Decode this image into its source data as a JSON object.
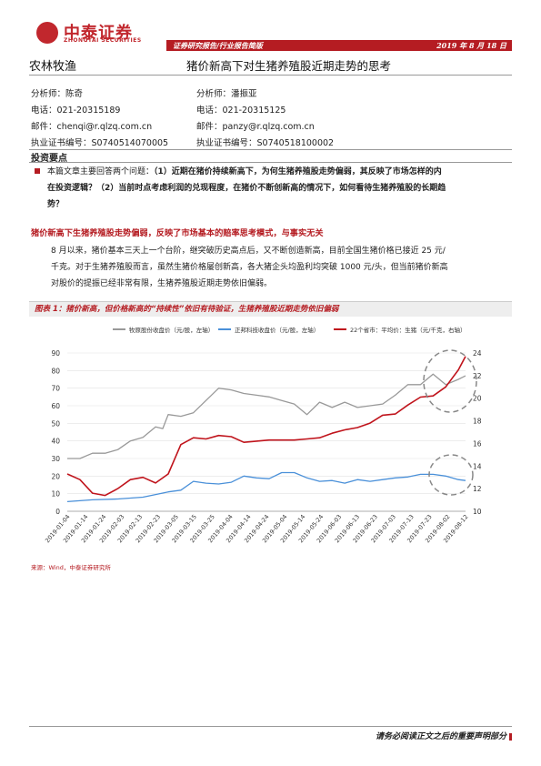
{
  "header": {
    "logo_cn": "中泰证券",
    "logo_en": "ZHONGTAI SECURITIES",
    "report_type": "证券研究报告/行业报告简版",
    "date": "2019 年 8 月 18 日",
    "brand_color": "#c1272d"
  },
  "section": "农林牧渔",
  "title": "猪价新高下对生猪养殖股近期走势的思考",
  "analysts": [
    {
      "name_line": "分析师：陈奇",
      "phone_line": "电话：021-20315189",
      "email_line": "邮件：chenqi@r.qlzq.com.cn",
      "cert_line": "执业证书编号：S0740514070005"
    },
    {
      "name_line": "分析师：潘振亚",
      "phone_line": "电话：021-20315125",
      "email_line": "邮件：panzy@r.qlzq.com.cn",
      "cert_line": "执业证书编号：S0740518100002"
    }
  ],
  "invest_label": "投资要点",
  "summary": {
    "p1": "本篇文章主要回答两个问题：",
    "p2": "（1）近期在猪价持续新高下，为何生猪养殖股走势偏弱，其反映了市场怎样的内",
    "p3": "在投资逻辑？（2）当前时点考虑利润的兑现程度，在猪价不断创新高的情况下，如何看待生猪养殖股的长期趋",
    "p4": "势？"
  },
  "red_heading": "猪价新高下生猪养殖股走势偏弱，反映了市场基本的赔率思考模式，与事实无关",
  "body_para": {
    "l1": "8 月以来，猪价基本三天上一个台阶，继突破历史高点后，又不断创造新高，目前全国生猪价格已接近 25 元/",
    "l2": "千克。对于生猪养殖股而言，虽然生猪价格屡创新高，各大猪企头均盈利均突破 1000 元/头，但当前猪价新高",
    "l3": "对股价的提振已经非常有限，生猪养殖股近期走势依旧偏弱。"
  },
  "figure_caption": "图表 1：猪价新高，但价格新高的“持续性”依旧有待验证，生猪养殖股近期走势依旧偏弱",
  "source": "来源：Wind，中泰证券研究所",
  "footer": "请务必阅读正文之后的重要声明部分",
  "chart_data": {
    "type": "line",
    "legend": [
      "牧原股份收盘价（元/股，左轴）",
      "正邦科技收盘价（元/股，左轴）",
      "22个省市：平均价：生猪（元/千克，右轴）"
    ],
    "colors": [
      "#999999",
      "#4a90d9",
      "#c0141c"
    ],
    "y_left": {
      "min": 0,
      "max": 90,
      "ticks": [
        0,
        10,
        20,
        30,
        40,
        50,
        60,
        70,
        80,
        90
      ]
    },
    "y_right": {
      "min": 10,
      "max": 24,
      "ticks": [
        10,
        12,
        14,
        16,
        18,
        20,
        22,
        24
      ]
    },
    "x_tick_labels": [
      "2019-01-04",
      "2019-01-14",
      "2019-01-24",
      "2019-02-03",
      "2019-02-13",
      "2019-02-23",
      "2019-03-05",
      "2019-03-15",
      "2019-03-25",
      "2019-04-04",
      "2019-04-14",
      "2019-04-24",
      "2019-05-04",
      "2019-05-14",
      "2019-05-24",
      "2019-06-03",
      "2019-06-13",
      "2019-06-23",
      "2019-07-03",
      "2019-07-13",
      "2019-07-23",
      "2019-08-02",
      "2019-08-12"
    ],
    "x_range_days": [
      0,
      221
    ],
    "series": [
      {
        "name": "牧原股份收盘价（元/股，左轴）",
        "axis": "left",
        "x": [
          0,
          7,
          14,
          21,
          28,
          35,
          42,
          49,
          53,
          56,
          63,
          70,
          77,
          84,
          91,
          98,
          105,
          112,
          119,
          126,
          133,
          140,
          147,
          154,
          161,
          168,
          175,
          182,
          189,
          196,
          203,
          210,
          217,
          221
        ],
        "y": [
          30,
          30,
          33,
          33,
          35,
          40,
          42,
          48,
          47,
          55,
          54,
          56,
          63,
          70,
          69,
          67,
          66,
          65,
          63,
          61,
          55,
          62,
          59,
          62,
          59,
          60,
          61,
          66,
          72,
          72,
          78,
          72,
          75,
          77
        ]
      },
      {
        "name": "正邦科技收盘价（元/股，左轴）",
        "axis": "left",
        "x": [
          0,
          14,
          28,
          42,
          56,
          63,
          70,
          77,
          84,
          91,
          98,
          105,
          112,
          119,
          126,
          133,
          140,
          147,
          154,
          161,
          168,
          175,
          182,
          189,
          196,
          203,
          210,
          217,
          221
        ],
        "y": [
          5.5,
          6.5,
          7,
          8,
          11,
          12,
          17,
          16,
          15.5,
          16.5,
          20,
          19,
          18.5,
          22,
          22,
          19,
          17,
          17.5,
          16,
          18,
          17,
          18,
          19,
          19.5,
          21,
          21,
          20,
          18,
          17.5
        ]
      },
      {
        "name": "22个省市：平均价：生猪（元/千克，右轴）",
        "axis": "right",
        "x": [
          0,
          7,
          14,
          21,
          28,
          35,
          42,
          49,
          56,
          63,
          70,
          77,
          84,
          91,
          98,
          105,
          112,
          119,
          126,
          133,
          140,
          147,
          154,
          161,
          168,
          175,
          182,
          189,
          196,
          203,
          210,
          217,
          221
        ],
        "y": [
          13.3,
          12.8,
          11.6,
          11.4,
          12,
          12.8,
          13,
          12.5,
          13.3,
          15.9,
          16.5,
          16.4,
          16.7,
          16.6,
          16.1,
          16.2,
          16.3,
          16.3,
          16.3,
          16.4,
          16.5,
          16.9,
          17.2,
          17.4,
          17.8,
          18.5,
          18.6,
          19.4,
          20.1,
          20.2,
          21,
          22.5,
          23.7
        ]
      }
    ]
  }
}
